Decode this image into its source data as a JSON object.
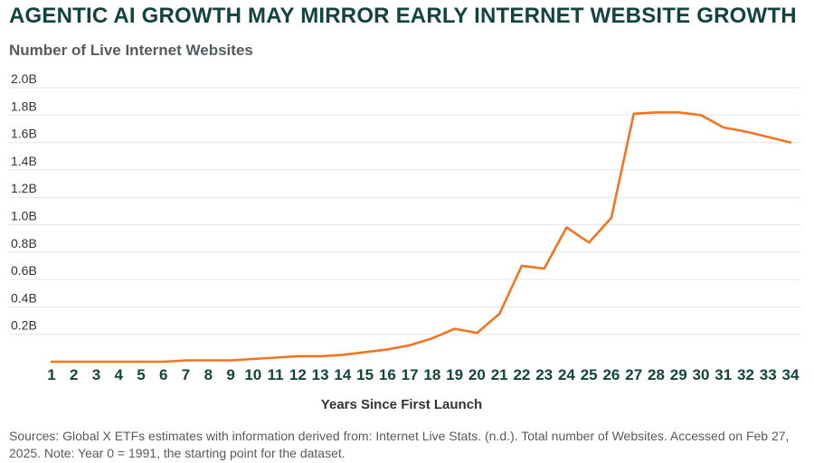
{
  "title": "AGENTIC AI GROWTH MAY MIRROR EARLY INTERNET WEBSITE GROWTH",
  "subtitle": "Number of Live Internet Websites",
  "source": "Sources: Global X ETFs estimates with information derived from: Internet Live Stats. (n.d.). Total number of Websites. Accessed on Feb 27, 2025. Note: Year 0 = 1991, the starting point for the dataset.",
  "colors": {
    "line": "#f07522",
    "title": "#12443d",
    "grid": "#e6e6e6"
  },
  "chart_data": {
    "type": "line",
    "title": "AGENTIC AI GROWTH MAY MIRROR EARLY INTERNET WEBSITE GROWTH",
    "ylabel": "Number of Live Internet Websites",
    "xlabel": "Years Since First Launch",
    "ylim": [
      0,
      2.0
    ],
    "yticks": [
      0.2,
      0.4,
      0.6,
      0.8,
      1.0,
      1.2,
      1.4,
      1.6,
      1.8,
      2.0
    ],
    "ytick_labels": [
      "0.2B",
      "0.4B",
      "0.6B",
      "0.8B",
      "1.0B",
      "1.2B",
      "1.4B",
      "1.6B",
      "1.8B",
      "2.0B"
    ],
    "grid": true,
    "x": [
      1,
      2,
      3,
      4,
      5,
      6,
      7,
      8,
      9,
      10,
      11,
      12,
      13,
      14,
      15,
      16,
      17,
      18,
      19,
      20,
      21,
      22,
      23,
      24,
      25,
      26,
      27,
      28,
      29,
      30,
      31,
      32,
      33,
      34
    ],
    "values": [
      0.0,
      0.0,
      0.0,
      0.0,
      0.0,
      0.0,
      0.01,
      0.01,
      0.01,
      0.02,
      0.03,
      0.04,
      0.04,
      0.05,
      0.07,
      0.09,
      0.12,
      0.17,
      0.24,
      0.21,
      0.35,
      0.7,
      0.68,
      0.98,
      0.87,
      1.05,
      1.81,
      1.82,
      1.82,
      1.8,
      1.71,
      1.68,
      1.64,
      1.6
    ]
  }
}
